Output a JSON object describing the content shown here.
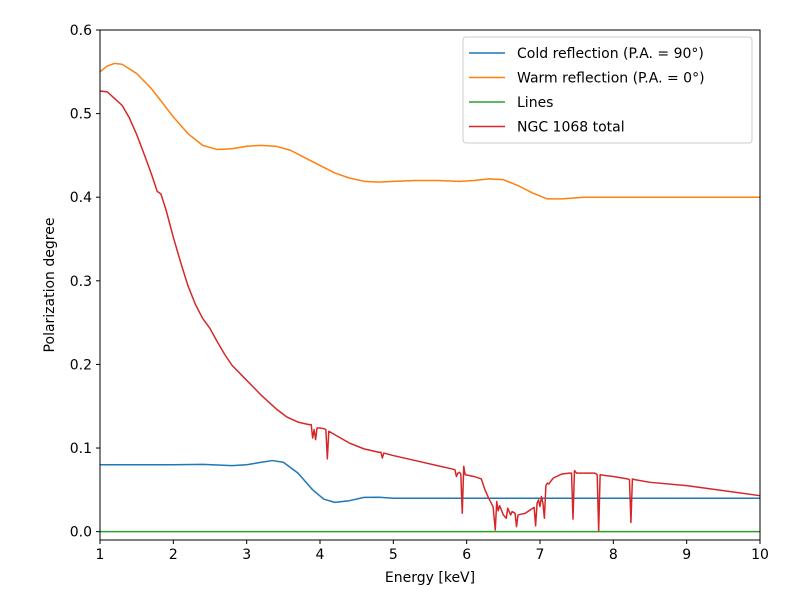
{
  "chart_data": {
    "type": "line",
    "title": "",
    "xlabel": "Energy [keV]",
    "ylabel": "Polarization degree",
    "xlim": [
      1,
      10
    ],
    "ylim": [
      -0.01,
      0.6
    ],
    "xticks": [
      1,
      2,
      3,
      4,
      5,
      6,
      7,
      8,
      9,
      10
    ],
    "xtick_labels": [
      "1",
      "2",
      "3",
      "4",
      "5",
      "6",
      "7",
      "8",
      "9",
      "10"
    ],
    "yticks": [
      0.0,
      0.1,
      0.2,
      0.3,
      0.4,
      0.5,
      0.6
    ],
    "ytick_labels": [
      "0.0",
      "0.1",
      "0.2",
      "0.3",
      "0.4",
      "0.5",
      "0.6"
    ],
    "grid": false,
    "legend_position": "top-right",
    "series": [
      {
        "name": "Cold reflection (P.A. = 90°)",
        "color": "#1f77b4",
        "points": [
          [
            1.0,
            0.08
          ],
          [
            1.5,
            0.08
          ],
          [
            2.0,
            0.08
          ],
          [
            2.4,
            0.0805
          ],
          [
            2.8,
            0.079
          ],
          [
            3.0,
            0.08
          ],
          [
            3.2,
            0.083
          ],
          [
            3.35,
            0.085
          ],
          [
            3.5,
            0.083
          ],
          [
            3.7,
            0.07
          ],
          [
            3.9,
            0.05
          ],
          [
            4.05,
            0.039
          ],
          [
            4.2,
            0.035
          ],
          [
            4.4,
            0.037
          ],
          [
            4.6,
            0.041
          ],
          [
            4.8,
            0.0412
          ],
          [
            5.0,
            0.04
          ],
          [
            5.5,
            0.04
          ],
          [
            6.0,
            0.04
          ],
          [
            7.0,
            0.04
          ],
          [
            8.0,
            0.04
          ],
          [
            9.0,
            0.04
          ],
          [
            10.0,
            0.04
          ]
        ]
      },
      {
        "name": "Warm reflection (P.A. = 0°)",
        "color": "#ff7f0e",
        "points": [
          [
            1.0,
            0.55
          ],
          [
            1.1,
            0.557
          ],
          [
            1.2,
            0.56
          ],
          [
            1.3,
            0.559
          ],
          [
            1.5,
            0.548
          ],
          [
            1.7,
            0.53
          ],
          [
            2.0,
            0.496
          ],
          [
            2.2,
            0.476
          ],
          [
            2.4,
            0.462
          ],
          [
            2.6,
            0.457
          ],
          [
            2.8,
            0.458
          ],
          [
            3.0,
            0.461
          ],
          [
            3.2,
            0.462
          ],
          [
            3.4,
            0.461
          ],
          [
            3.6,
            0.456
          ],
          [
            3.8,
            0.447
          ],
          [
            4.0,
            0.438
          ],
          [
            4.2,
            0.429
          ],
          [
            4.4,
            0.423
          ],
          [
            4.6,
            0.419
          ],
          [
            4.8,
            0.418
          ],
          [
            5.0,
            0.419
          ],
          [
            5.3,
            0.42
          ],
          [
            5.6,
            0.42
          ],
          [
            5.9,
            0.419
          ],
          [
            6.1,
            0.42
          ],
          [
            6.3,
            0.422
          ],
          [
            6.5,
            0.421
          ],
          [
            6.7,
            0.414
          ],
          [
            6.9,
            0.405
          ],
          [
            7.1,
            0.398
          ],
          [
            7.3,
            0.398
          ],
          [
            7.6,
            0.4
          ],
          [
            8.0,
            0.4
          ],
          [
            9.0,
            0.4
          ],
          [
            10.0,
            0.4
          ]
        ]
      },
      {
        "name": "Lines",
        "color": "#2ca02c",
        "points": [
          [
            1.0,
            0.0
          ],
          [
            10.0,
            0.0
          ]
        ]
      },
      {
        "name": "NGC 1068 total",
        "color": "#d62728",
        "points": [
          [
            1.0,
            0.527
          ],
          [
            1.1,
            0.526
          ],
          [
            1.2,
            0.518
          ],
          [
            1.3,
            0.51
          ],
          [
            1.4,
            0.495
          ],
          [
            1.5,
            0.475
          ],
          [
            1.6,
            0.452
          ],
          [
            1.7,
            0.428
          ],
          [
            1.78,
            0.407
          ],
          [
            1.83,
            0.404
          ],
          [
            1.9,
            0.385
          ],
          [
            2.0,
            0.352
          ],
          [
            2.1,
            0.322
          ],
          [
            2.2,
            0.294
          ],
          [
            2.3,
            0.272
          ],
          [
            2.4,
            0.255
          ],
          [
            2.5,
            0.243
          ],
          [
            2.6,
            0.227
          ],
          [
            2.7,
            0.212
          ],
          [
            2.8,
            0.199
          ],
          [
            3.0,
            0.181
          ],
          [
            3.2,
            0.163
          ],
          [
            3.4,
            0.147
          ],
          [
            3.55,
            0.137
          ],
          [
            3.7,
            0.131
          ],
          [
            3.85,
            0.128
          ],
          [
            3.88,
            0.128
          ],
          [
            3.9,
            0.112
          ],
          [
            3.92,
            0.122
          ],
          [
            3.94,
            0.11
          ],
          [
            3.96,
            0.124
          ],
          [
            4.0,
            0.124
          ],
          [
            4.06,
            0.123
          ],
          [
            4.08,
            0.122
          ],
          [
            4.1,
            0.087
          ],
          [
            4.12,
            0.12
          ],
          [
            4.2,
            0.116
          ],
          [
            4.4,
            0.106
          ],
          [
            4.6,
            0.099
          ],
          [
            4.8,
            0.095
          ],
          [
            4.83,
            0.095
          ],
          [
            4.85,
            0.088
          ],
          [
            4.87,
            0.094
          ],
          [
            5.0,
            0.091
          ],
          [
            5.3,
            0.085
          ],
          [
            5.6,
            0.079
          ],
          [
            5.8,
            0.075
          ],
          [
            5.84,
            0.074
          ],
          [
            5.86,
            0.066
          ],
          [
            5.88,
            0.07
          ],
          [
            5.9,
            0.071
          ],
          [
            5.92,
            0.069
          ],
          [
            5.94,
            0.022
          ],
          [
            5.96,
            0.078
          ],
          [
            5.98,
            0.068
          ],
          [
            6.1,
            0.066
          ],
          [
            6.2,
            0.063
          ],
          [
            6.25,
            0.05
          ],
          [
            6.3,
            0.04
          ],
          [
            6.36,
            0.03
          ],
          [
            6.39,
            0.002
          ],
          [
            6.41,
            0.036
          ],
          [
            6.43,
            0.025
          ],
          [
            6.45,
            0.031
          ],
          [
            6.5,
            0.02
          ],
          [
            6.54,
            0.016
          ],
          [
            6.56,
            0.028
          ],
          [
            6.6,
            0.02
          ],
          [
            6.62,
            0.024
          ],
          [
            6.66,
            0.022
          ],
          [
            6.68,
            0.006
          ],
          [
            6.7,
            0.02
          ],
          [
            6.75,
            0.021
          ],
          [
            6.8,
            0.022
          ],
          [
            6.85,
            0.025
          ],
          [
            6.92,
            0.029
          ],
          [
            6.94,
            0.007
          ],
          [
            6.96,
            0.034
          ],
          [
            6.98,
            0.038
          ],
          [
            7.0,
            0.03
          ],
          [
            7.02,
            0.042
          ],
          [
            7.04,
            0.034
          ],
          [
            7.06,
            0.016
          ],
          [
            7.08,
            0.055
          ],
          [
            7.1,
            0.058
          ],
          [
            7.12,
            0.057
          ],
          [
            7.18,
            0.064
          ],
          [
            7.3,
            0.069
          ],
          [
            7.4,
            0.07
          ],
          [
            7.43,
            0.07
          ],
          [
            7.45,
            0.015
          ],
          [
            7.47,
            0.073
          ],
          [
            7.5,
            0.07
          ],
          [
            7.6,
            0.07
          ],
          [
            7.75,
            0.07
          ],
          [
            7.78,
            0.068
          ],
          [
            7.8,
            0.001
          ],
          [
            7.82,
            0.068
          ],
          [
            7.9,
            0.067
          ],
          [
            8.0,
            0.066
          ],
          [
            8.2,
            0.063
          ],
          [
            8.22,
            0.062
          ],
          [
            8.24,
            0.011
          ],
          [
            8.26,
            0.063
          ],
          [
            8.3,
            0.062
          ],
          [
            8.5,
            0.059
          ],
          [
            9.0,
            0.055
          ],
          [
            9.5,
            0.049
          ],
          [
            10.0,
            0.043
          ]
        ]
      }
    ]
  }
}
